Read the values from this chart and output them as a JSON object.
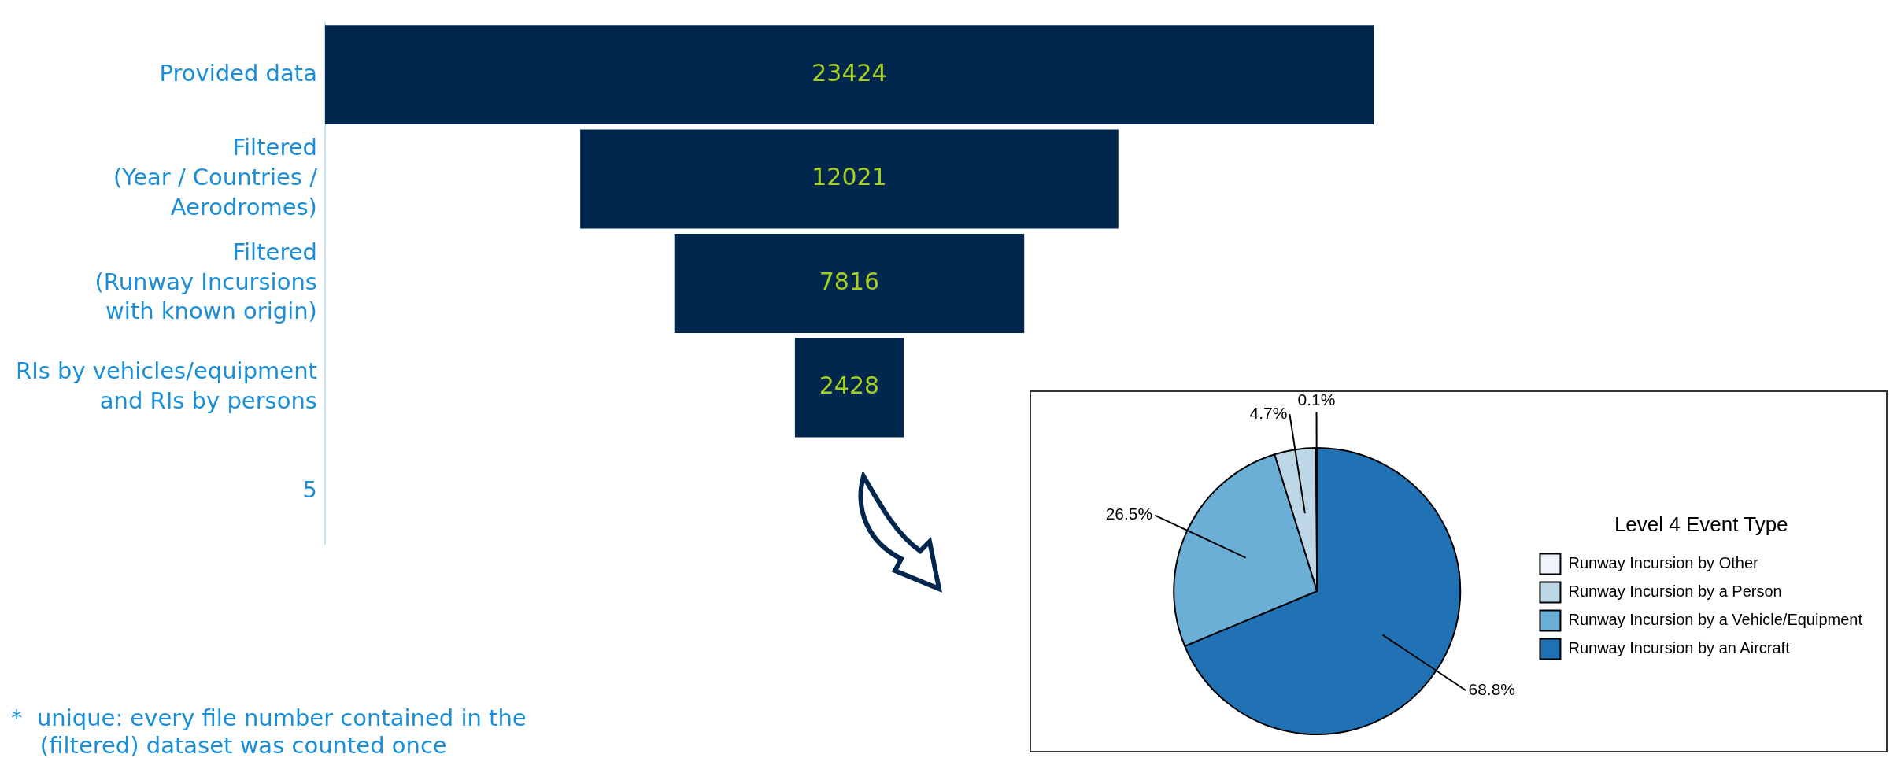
{
  "chart_data": [
    {
      "type": "other",
      "categories": [
        "Provided data",
        "Filtered\n(Year / Countries /\nAerodromes)",
        "Filtered\n(Runway Incursions\nwith known origin)",
        "RIs by vehicles/equipment\nand RIs by persons",
        "5"
      ],
      "values": [
        23424,
        12021,
        7816,
        2428,
        null
      ],
      "color": "#02274f",
      "data_labels": true,
      "legend": false,
      "annotations": [
        "*  unique: every file number contained in the\n    (filtered) dataset was counted once"
      ]
    },
    {
      "type": "pie",
      "categories": [
        "Runway Incursion by Other",
        "Runway Incursion by a Person",
        "Runway Incursion by a Vehicle/Equipment",
        "Runway Incursion by an Aircraft"
      ],
      "values": [
        0.1,
        4.7,
        26.5,
        68.8
      ],
      "colors": [
        "#eef3fc",
        "#bdd7e7",
        "#6baed6",
        "#2171b5"
      ],
      "value_labels": [
        "0.1%",
        "4.7%",
        "26.5%",
        "68.8%"
      ],
      "legend": "right",
      "legend_title": "Level 4 Event Type"
    }
  ]
}
